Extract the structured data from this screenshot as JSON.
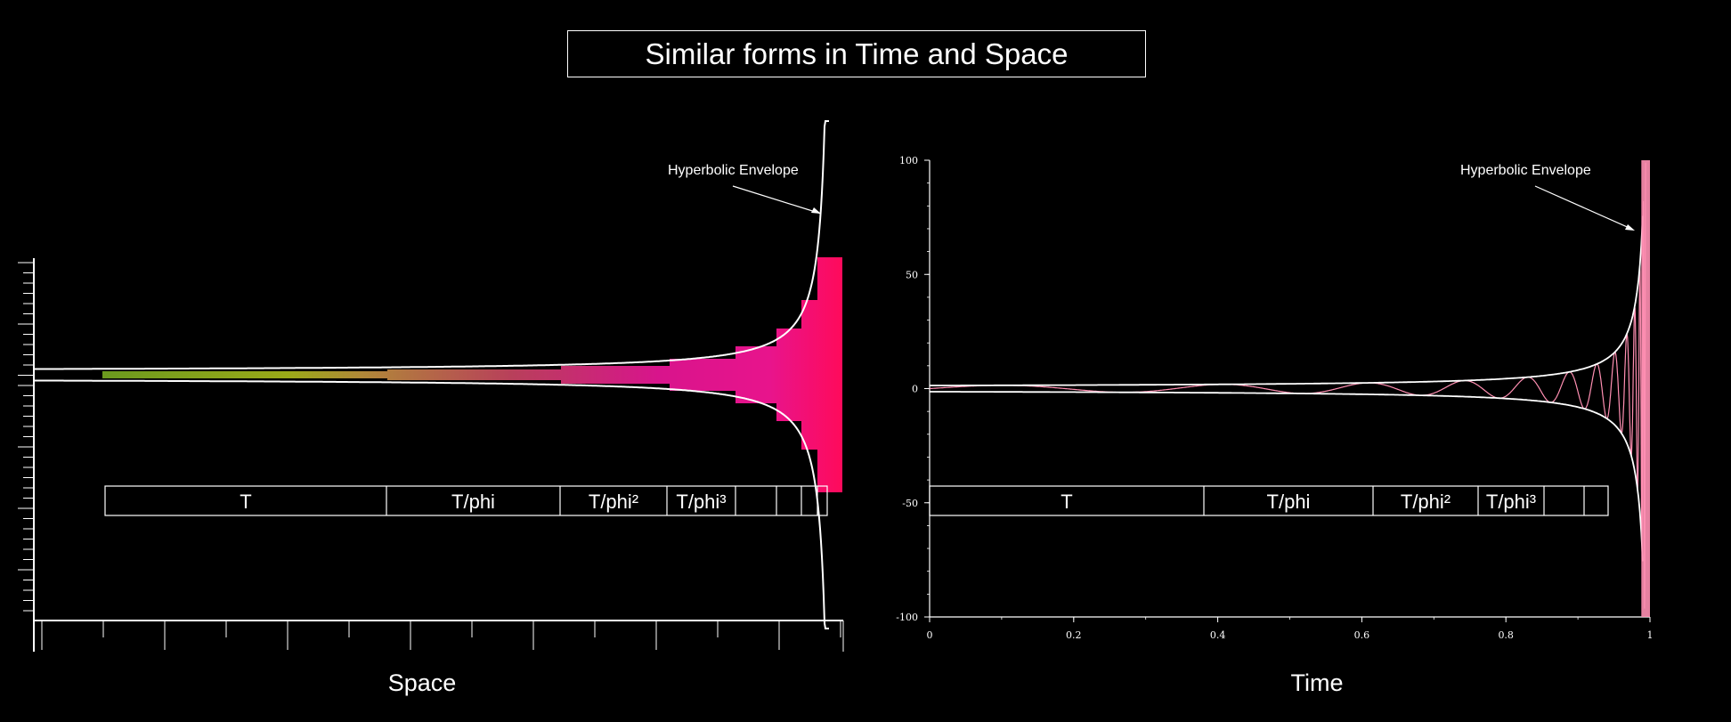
{
  "title": "Similar forms in Time and Space",
  "chart_data": [
    {
      "type": "area",
      "xlabel": "Space",
      "annotation": "Hyperbolic Envelope",
      "periods": [
        "T",
        "T/phi",
        "T/phi²",
        "T/phi³",
        "",
        "",
        ""
      ],
      "fill_gradient": [
        "#6b9a1e",
        "#9aaa18",
        "#b08838",
        "#b8405a",
        "#d8148c",
        "#ff0a5a"
      ],
      "envelope_color": "#ffffff"
    },
    {
      "type": "line",
      "xlabel": "Time",
      "annotation": "Hyperbolic Envelope",
      "xlim": [
        0,
        1
      ],
      "ylim": [
        -100,
        100
      ],
      "x_ticks": [
        "0",
        "0.2",
        "0.4",
        "0.6",
        "0.8",
        "1"
      ],
      "y_ticks": [
        "100",
        "50",
        "0",
        "-50",
        "-100"
      ],
      "periods": [
        "T",
        "T/phi",
        "T/phi²",
        "T/phi³",
        "",
        ""
      ],
      "series_color": "#ff8fb2",
      "envelope_color": "#ffffff"
    }
  ]
}
